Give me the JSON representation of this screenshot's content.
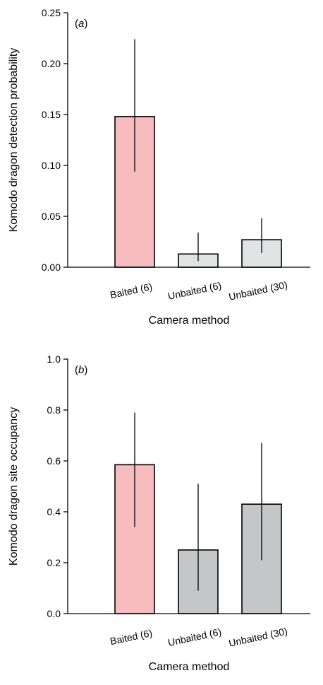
{
  "chart_data": [
    {
      "type": "bar",
      "panel_label_prefix": "(",
      "panel_label_letter": "a",
      "panel_label_suffix": ")",
      "categories": [
        "Baited (6)",
        "Unbaited (6)",
        "Unbaited (30)"
      ],
      "values": [
        0.148,
        0.013,
        0.027
      ],
      "error_low": [
        0.094,
        0.006,
        0.014
      ],
      "error_high": [
        0.224,
        0.034,
        0.048
      ],
      "bar_colors": [
        "#f7bcbe",
        "#e2e3e5",
        "#e2e3e5"
      ],
      "xlabel": "Camera method",
      "ylabel": "Komodo dragon detection probability",
      "ylim": [
        0,
        0.25
      ],
      "yticks": [
        "0.00",
        "0.05",
        "0.10",
        "0.15",
        "0.20",
        "0.25"
      ],
      "grid": false
    },
    {
      "type": "bar",
      "panel_label_prefix": "(",
      "panel_label_letter": "b",
      "panel_label_suffix": ")",
      "categories": [
        "Baited (6)",
        "Unbaited (6)",
        "Unbaited (30)"
      ],
      "values": [
        0.585,
        0.25,
        0.43
      ],
      "error_low": [
        0.34,
        0.09,
        0.21
      ],
      "error_high": [
        0.79,
        0.51,
        0.67
      ],
      "bar_colors": [
        "#f7bcbe",
        "#c5c6c8",
        "#c5c6c8"
      ],
      "xlabel": "Camera method",
      "ylabel": "Komodo dragon site occupancy",
      "ylim": [
        0,
        1.0
      ],
      "yticks": [
        "0.0",
        "0.2",
        "0.4",
        "0.6",
        "0.8",
        "1.0"
      ],
      "grid": false
    }
  ]
}
